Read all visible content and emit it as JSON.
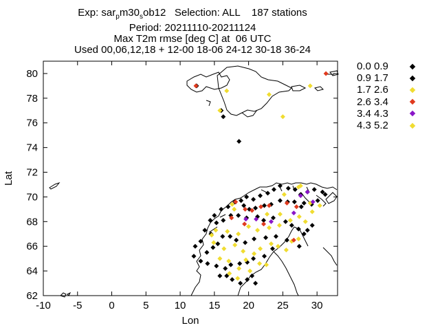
{
  "chart_data": {
    "type": "scatter",
    "title_lines": [
      "Exp: sar",
      "Period: 20211110-20211124",
      "Max T2m rmse [deg C] at  06 UTC",
      "Used 00,06,12,18 + 12-00 18-06 24-12 30-18 36-24"
    ],
    "title_exp": {
      "prefix": "Exp: sar",
      "sub1": "p",
      "mid": "m30",
      "sub2": "s",
      "rest": "ob12   Selection: ALL    187 stations"
    },
    "xlabel": "Lon",
    "ylabel": "Lat",
    "xlim": [
      -10,
      33
    ],
    "ylim": [
      62,
      81
    ],
    "xticks": [
      -10,
      -5,
      0,
      5,
      10,
      15,
      20,
      25,
      30
    ],
    "yticks": [
      62,
      64,
      66,
      68,
      70,
      72,
      74,
      76,
      78,
      80
    ],
    "legend_position": "right",
    "series": [
      {
        "name": "0.0 0.9",
        "color": "#000000",
        "points": []
      },
      {
        "name": "0.9 1.7",
        "color": "#000000",
        "points": [
          [
            16.3,
            76.5
          ],
          [
            18.6,
            74.5
          ],
          [
            12.4,
            79.0
          ],
          [
            16.0,
            77.0
          ],
          [
            19.7,
            70.0
          ],
          [
            20.7,
            69.8
          ],
          [
            21.7,
            70.1
          ],
          [
            22.8,
            70.3
          ],
          [
            23.7,
            70.6
          ],
          [
            24.6,
            70.9
          ],
          [
            25.8,
            70.7
          ],
          [
            26.8,
            70.6
          ],
          [
            27.6,
            70.2
          ],
          [
            28.6,
            70.4
          ],
          [
            29.6,
            70.6
          ],
          [
            30.8,
            70.4
          ],
          [
            31.2,
            70.2
          ],
          [
            14.4,
            68.1
          ],
          [
            15.0,
            68.5
          ],
          [
            16.0,
            69.0
          ],
          [
            17.0,
            69.2
          ],
          [
            18.0,
            69.6
          ],
          [
            18.9,
            69.7
          ],
          [
            19.3,
            69.3
          ],
          [
            20.1,
            69.0
          ],
          [
            21.0,
            69.1
          ],
          [
            22.3,
            69.3
          ],
          [
            23.3,
            69.4
          ],
          [
            24.6,
            69.7
          ],
          [
            25.7,
            69.6
          ],
          [
            26.7,
            69.6
          ],
          [
            27.7,
            69.2
          ],
          [
            28.1,
            69.5
          ],
          [
            29.2,
            69.4
          ],
          [
            30.1,
            69.7
          ],
          [
            13.6,
            67.3
          ],
          [
            14.5,
            67.0
          ],
          [
            15.3,
            67.9
          ],
          [
            16.3,
            68.1
          ],
          [
            17.4,
            68.5
          ],
          [
            18.5,
            68.5
          ],
          [
            19.7,
            68.3
          ],
          [
            21.3,
            68.4
          ],
          [
            22.2,
            68.1
          ],
          [
            23.6,
            68.3
          ],
          [
            25.4,
            68.0
          ],
          [
            26.3,
            67.7
          ],
          [
            27.3,
            67.4
          ],
          [
            28.6,
            67.3
          ],
          [
            29.3,
            67.7
          ],
          [
            12.2,
            66.0
          ],
          [
            13.0,
            66.4
          ],
          [
            13.9,
            65.5
          ],
          [
            14.8,
            65.9
          ],
          [
            15.5,
            66.2
          ],
          [
            16.2,
            66.8
          ],
          [
            17.3,
            66.8
          ],
          [
            18.2,
            66.5
          ],
          [
            19.5,
            66.3
          ],
          [
            20.8,
            66.6
          ],
          [
            22.5,
            66.7
          ],
          [
            24.0,
            66.8
          ],
          [
            25.6,
            66.5
          ],
          [
            27.4,
            66.0
          ],
          [
            28.1,
            67.0
          ],
          [
            12.0,
            65.2
          ],
          [
            13.0,
            64.8
          ],
          [
            14.0,
            64.6
          ],
          [
            15.3,
            64.4
          ],
          [
            16.6,
            64.2
          ],
          [
            17.4,
            64.5
          ],
          [
            18.7,
            64.6
          ],
          [
            19.8,
            64.7
          ],
          [
            20.7,
            65.0
          ],
          [
            22.3,
            65.2
          ],
          [
            23.5,
            65.8
          ],
          [
            15.8,
            63.6
          ],
          [
            16.8,
            63.6
          ],
          [
            17.6,
            63.3
          ],
          [
            18.8,
            63.0
          ],
          [
            19.8,
            63.3
          ],
          [
            20.5,
            63.6
          ],
          [
            21.0,
            63.0
          ]
        ]
      },
      {
        "name": "1.7 2.6",
        "color": "#f0dc30",
        "points": [
          [
            16.8,
            78.6
          ],
          [
            15.8,
            77.0
          ],
          [
            25.0,
            76.5
          ],
          [
            29.0,
            79.0
          ],
          [
            23.0,
            78.3
          ],
          [
            17.6,
            69.4
          ],
          [
            25.2,
            70.2
          ],
          [
            27.6,
            70.9
          ],
          [
            29.0,
            69.5
          ],
          [
            30.4,
            69.3
          ],
          [
            15.2,
            67.3
          ],
          [
            16.9,
            67.2
          ],
          [
            18.5,
            67.0
          ],
          [
            20.0,
            67.6
          ],
          [
            21.3,
            67.3
          ],
          [
            23.0,
            67.5
          ],
          [
            24.5,
            67.7
          ],
          [
            26.1,
            68.1
          ],
          [
            27.4,
            68.4
          ],
          [
            28.3,
            68.0
          ],
          [
            29.3,
            68.8
          ],
          [
            14.9,
            66.3
          ],
          [
            16.4,
            65.8
          ],
          [
            18.0,
            66.1
          ],
          [
            19.2,
            65.6
          ],
          [
            20.8,
            65.4
          ],
          [
            21.7,
            65.8
          ],
          [
            23.3,
            66.2
          ],
          [
            24.3,
            66.0
          ],
          [
            25.5,
            65.7
          ],
          [
            26.3,
            66.4
          ],
          [
            27.3,
            66.6
          ],
          [
            15.8,
            65.0
          ],
          [
            17.1,
            64.8
          ],
          [
            18.6,
            64.2
          ],
          [
            19.6,
            64.9
          ],
          [
            20.2,
            64.0
          ],
          [
            21.6,
            64.6
          ],
          [
            22.6,
            64.5
          ],
          [
            17.2,
            63.8
          ],
          [
            18.4,
            63.4
          ],
          [
            14.6,
            66.9
          ],
          [
            22.7,
            68.6
          ],
          [
            24.6,
            68.6
          ]
        ]
      },
      {
        "name": "2.6 3.4",
        "color": "#e03a1e",
        "points": [
          [
            12.3,
            79.0
          ],
          [
            31.3,
            80.0
          ],
          [
            18.1,
            69.6
          ],
          [
            19.5,
            69.0
          ],
          [
            20.5,
            68.9
          ],
          [
            21.8,
            69.2
          ],
          [
            23.0,
            69.3
          ],
          [
            25.6,
            69.5
          ],
          [
            27.0,
            69.2
          ],
          [
            17.5,
            68.3
          ],
          [
            19.4,
            67.8
          ],
          [
            22.2,
            67.8
          ],
          [
            26.6,
            66.5
          ]
        ]
      },
      {
        "name": "3.4 4.3",
        "color": "#8a16c8",
        "points": [
          [
            19.6,
            68.2
          ],
          [
            21.1,
            68.2
          ],
          [
            23.3,
            68.0
          ],
          [
            26.6,
            68.7
          ],
          [
            27.6,
            70.1
          ],
          [
            28.6,
            70.4
          ],
          [
            29.4,
            69.6
          ]
        ]
      },
      {
        "name": "4.3 5.2",
        "color": "#f0dc30",
        "points": [
          [
            17.9,
            69.0
          ],
          [
            27.3,
            70.8
          ]
        ]
      }
    ]
  }
}
